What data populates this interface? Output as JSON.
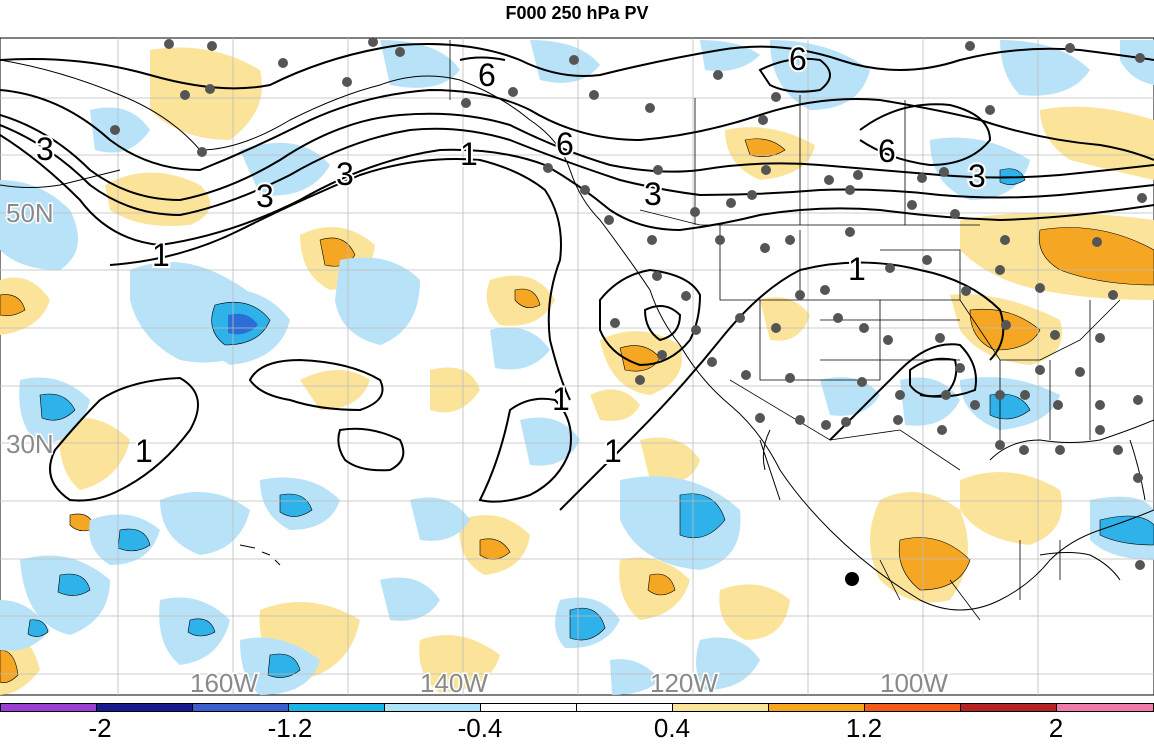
{
  "title": "F000 250 hPa PV",
  "lat_labels": [
    "50N",
    "30N"
  ],
  "lon_labels": [
    "160W",
    "140W",
    "120W",
    "100W"
  ],
  "contour_labels": [
    "6",
    "6",
    "6",
    "6",
    "3",
    "3",
    "3",
    "3",
    "1",
    "1",
    "1",
    "1",
    "1",
    "1"
  ],
  "colorbar": {
    "ticks": [
      "-2",
      "-1.2",
      "-0.4",
      "0.4",
      "1.2",
      "2"
    ],
    "colors": [
      "#9a3fd1",
      "#1a1a8c",
      "#3a5fcd",
      "#19b3e6",
      "#aee2f7",
      "#ffffff",
      "#ffffff",
      "#fbe49a",
      "#f7a51c",
      "#f25a1a",
      "#b52424",
      "#f07aa8"
    ]
  },
  "colors": {
    "positive_light": "#fbe49a",
    "positive_mid": "#f5a623",
    "negative_light": "#b8e2f8",
    "negative_mid": "#2fb2ea",
    "negative_strong": "#2a6ed6",
    "gridline": "#bdbdbd",
    "coast": "#000000",
    "station": "#555555"
  }
}
